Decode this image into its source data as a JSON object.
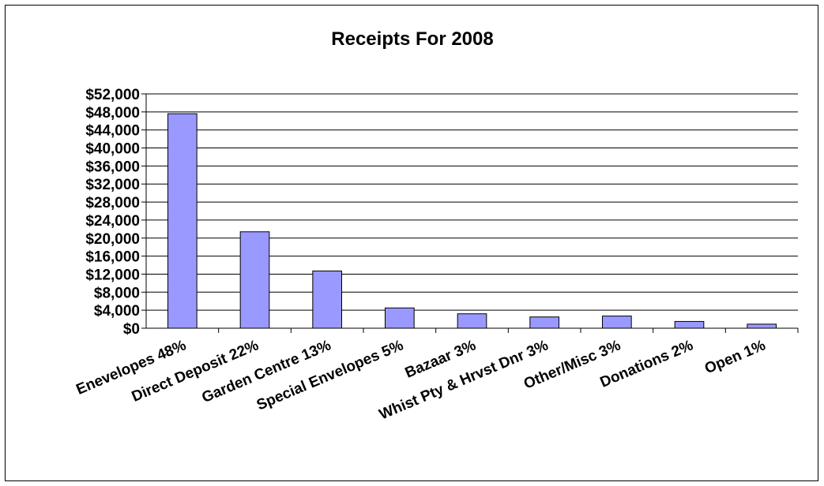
{
  "chart_data": {
    "type": "bar",
    "title": "Receipts For 2008",
    "xlabel": "",
    "ylabel": "",
    "categories": [
      "Enevelopes 48%",
      "Direct Deposit 22%",
      "Garden Centre 13%",
      "Special Envelopes 5%",
      "Bazaar 3%",
      "Whist Pty & Hrvst Dnr 3%",
      "Other/Misc 3%",
      "Donations 2%",
      "Open 1%"
    ],
    "values": [
      47600,
      21400,
      12700,
      4500,
      3200,
      2500,
      2700,
      1500,
      900
    ],
    "ylim": [
      0,
      52000
    ],
    "yticks": [
      0,
      4000,
      8000,
      12000,
      16000,
      20000,
      24000,
      28000,
      32000,
      36000,
      40000,
      44000,
      48000,
      52000
    ],
    "ytick_labels": [
      "$0",
      "$4,000",
      "$8,000",
      "$12,000",
      "$16,000",
      "$20,000",
      "$24,000",
      "$28,000",
      "$32,000",
      "$36,000",
      "$40,000",
      "$44,000",
      "$48,000",
      "$52,000"
    ],
    "grid": true,
    "legend": "none",
    "bar_color": "#9999ff",
    "bar_edge_color": "#000000"
  }
}
